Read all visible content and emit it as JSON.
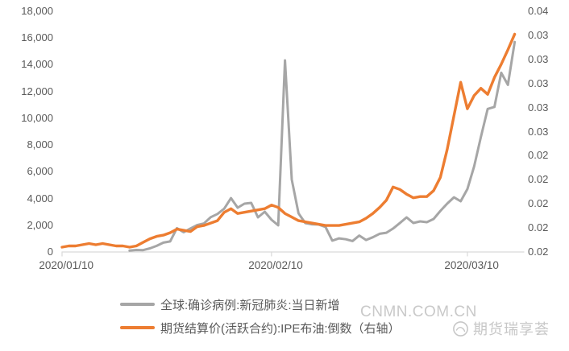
{
  "chart_data": {
    "type": "line",
    "title": "",
    "grid": false,
    "background": "#ffffff",
    "legend_position": "bottom-left",
    "x_start_date": "2020/01/10",
    "x_end_date": "2020/03/17",
    "x_freq": "daily",
    "num_points": 68,
    "x_ticks": [
      {
        "label": "2020/01/10",
        "index": 0
      },
      {
        "label": "2020/02/10",
        "index": 31
      },
      {
        "label": "2020/03/10",
        "index": 60
      }
    ],
    "left_axis": {
      "min": 0,
      "max": 18000,
      "step": 2000,
      "labels": [
        "18,000",
        "16,000",
        "14,000",
        "12,000",
        "10,000",
        "8,000",
        "6,000",
        "4,000",
        "2,000",
        "0"
      ]
    },
    "right_axis": {
      "min": 0.015,
      "max": 0.035,
      "step": 0.002,
      "labels": [
        "0.04",
        "0.03",
        "0.03",
        "0.03",
        "0.03",
        "0.03",
        "0.02",
        "0.02",
        "0.02",
        "0.02",
        "0.02"
      ]
    },
    "series": [
      {
        "name": "全球:确诊病例:新冠肺炎:当日新增",
        "axis": "left",
        "color": "#a6a6a6",
        "stroke_width": 3,
        "values": [
          null,
          null,
          null,
          null,
          null,
          null,
          null,
          null,
          null,
          null,
          100,
          150,
          140,
          270,
          460,
          700,
          790,
          1780,
          1480,
          1760,
          2010,
          2130,
          2600,
          2840,
          3240,
          4030,
          3310,
          3610,
          3670,
          2590,
          3010,
          2410,
          1990,
          14330,
          5420,
          2890,
          2160,
          2070,
          2050,
          1870,
          850,
          1020,
          950,
          820,
          1230,
          900,
          1100,
          1360,
          1440,
          1750,
          2160,
          2590,
          2170,
          2290,
          2230,
          2470,
          3070,
          3610,
          4090,
          3790,
          4700,
          6400,
          8600,
          10700,
          10850,
          13400,
          12500,
          15700
        ]
      },
      {
        "name": "期货结算价(活跃合约):IPE布油:倒数（右轴）",
        "axis": "right",
        "color": "#ed7d31",
        "stroke_width": 3.4,
        "values": [
          0.0154,
          0.0155,
          0.0155,
          0.0156,
          0.0157,
          0.0156,
          0.0157,
          0.0156,
          0.0155,
          0.0155,
          0.0154,
          0.0155,
          0.0158,
          0.0161,
          0.0163,
          0.0164,
          0.0166,
          0.0169,
          0.0168,
          0.0167,
          0.0171,
          0.0172,
          0.0174,
          0.0176,
          0.0183,
          0.0186,
          0.0182,
          0.0183,
          0.0184,
          0.0185,
          0.0186,
          0.0189,
          0.0187,
          0.0182,
          0.0179,
          0.0176,
          0.0175,
          0.0174,
          0.0173,
          0.0172,
          0.0172,
          0.0172,
          0.0173,
          0.0174,
          0.0175,
          0.0178,
          0.0182,
          0.0187,
          0.0193,
          0.0204,
          0.0202,
          0.0198,
          0.0195,
          0.0196,
          0.0196,
          0.0201,
          0.0212,
          0.0235,
          0.0263,
          0.0291,
          0.0269,
          0.028,
          0.0286,
          0.0281,
          0.0295,
          0.0306,
          0.0318,
          0.0331
        ]
      }
    ]
  },
  "axis_style": {
    "line_color": "#d9d9d9",
    "text_color": "#595959"
  },
  "watermark": {
    "text": "CNMN.COM.CN",
    "brand": "期货瑞享荟"
  }
}
